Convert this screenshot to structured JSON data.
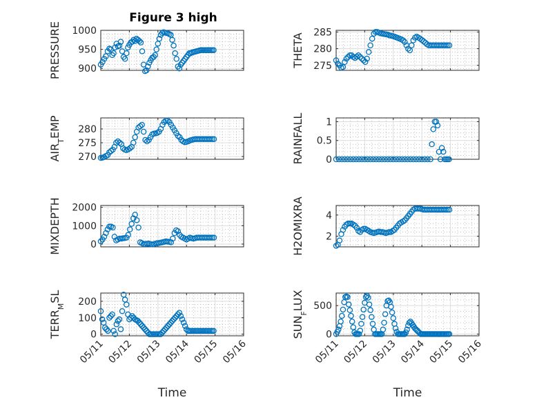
{
  "figure": {
    "title": "Figure 3 high",
    "marker_color": "#0072BD"
  },
  "chart_data": [
    {
      "type": "scatter",
      "ylabel": "PRESSURE",
      "xlabel": "",
      "ylim": [
        895,
        1000
      ],
      "yticks": [
        "900",
        "950",
        "1000"
      ],
      "ytick_values": [
        900,
        950,
        1000
      ],
      "xlim": [
        0,
        5
      ],
      "xtick_labels": [
        "05/11",
        "05/12",
        "05/13",
        "05/14",
        "05/15",
        "05/16"
      ],
      "show_xtick_labels": false,
      "grid": true,
      "x": [
        0,
        0.06,
        0.12,
        0.18,
        0.24,
        0.3,
        0.35,
        0.4,
        0.45,
        0.5,
        0.55,
        0.6,
        0.65,
        0.7,
        0.75,
        0.8,
        0.85,
        0.9,
        0.95,
        1.0,
        1.05,
        1.1,
        1.15,
        1.2,
        1.25,
        1.3,
        1.35,
        1.4,
        1.45,
        1.5,
        1.55,
        1.6,
        1.65,
        1.7,
        1.75,
        1.8,
        1.85,
        1.9,
        1.95,
        2.0,
        2.05,
        2.1,
        2.15,
        2.2,
        2.25,
        2.3,
        2.35,
        2.4,
        2.45,
        2.5,
        2.55,
        2.6,
        2.65,
        2.7,
        2.75,
        2.8,
        2.85,
        2.9,
        2.95,
        3.0,
        3.05,
        3.1,
        3.15,
        3.2,
        3.25,
        3.3,
        3.35,
        3.4,
        3.45,
        3.5,
        3.55,
        3.6,
        3.65,
        3.7,
        3.75,
        3.8,
        3.85,
        3.9,
        3.95
      ],
      "y": [
        910,
        917,
        925,
        932,
        945,
        952,
        950,
        935,
        940,
        955,
        965,
        958,
        960,
        970,
        945,
        930,
        925,
        940,
        955,
        962,
        968,
        970,
        975,
        972,
        978,
        975,
        972,
        968,
        945,
        910,
        893,
        895,
        905,
        915,
        922,
        928,
        930,
        935,
        950,
        965,
        978,
        988,
        993,
        995,
        994,
        993,
        992,
        990,
        988,
        975,
        960,
        940,
        925,
        905,
        900,
        910,
        915,
        920,
        925,
        930,
        935,
        940,
        940,
        942,
        943,
        944,
        945,
        946,
        947,
        948,
        948,
        948,
        948,
        948,
        948,
        948,
        948,
        948,
        948
      ]
    },
    {
      "type": "scatter",
      "ylabel": "THETA",
      "xlabel": "",
      "ylim": [
        273.5,
        285.5
      ],
      "yticks": [
        "275",
        "280",
        "285"
      ],
      "ytick_values": [
        275,
        280,
        285
      ],
      "xlim": [
        0,
        5
      ],
      "xtick_labels": [
        "05/11",
        "05/12",
        "05/13",
        "05/14",
        "05/15",
        "05/16"
      ],
      "show_xtick_labels": false,
      "grid": true,
      "x": [
        0,
        0.06,
        0.12,
        0.18,
        0.24,
        0.3,
        0.36,
        0.42,
        0.48,
        0.54,
        0.6,
        0.66,
        0.72,
        0.78,
        0.84,
        0.9,
        0.96,
        1.02,
        1.08,
        1.14,
        1.2,
        1.26,
        1.32,
        1.38,
        1.44,
        1.5,
        1.56,
        1.62,
        1.68,
        1.74,
        1.8,
        1.86,
        1.92,
        1.98,
        2.04,
        2.1,
        2.16,
        2.22,
        2.28,
        2.34,
        2.4,
        2.46,
        2.52,
        2.58,
        2.64,
        2.7,
        2.76,
        2.82,
        2.88,
        2.94,
        3.0,
        3.06,
        3.12,
        3.18,
        3.24,
        3.3,
        3.36,
        3.42,
        3.48,
        3.54,
        3.6,
        3.66,
        3.72,
        3.78,
        3.84,
        3.9,
        3.96
      ],
      "y": [
        276.5,
        275.5,
        275,
        274.3,
        274.5,
        276,
        277,
        277.5,
        278,
        278,
        277.5,
        277.2,
        277.6,
        278,
        277.5,
        277,
        276.5,
        276,
        277,
        279,
        281,
        283,
        284.5,
        285,
        285,
        284.8,
        284.6,
        284.5,
        284.4,
        284.3,
        284.2,
        284,
        283.9,
        283.8,
        283.6,
        283.4,
        283.2,
        283,
        282.8,
        282.5,
        282,
        281,
        280,
        279.5,
        281,
        282.5,
        283.3,
        283.6,
        283.3,
        283,
        282.6,
        282.2,
        281.8,
        281.3,
        281,
        281,
        281,
        281,
        281,
        281,
        281,
        281,
        281,
        281,
        281,
        281,
        281
      ]
    },
    {
      "type": "scatter",
      "ylabel": "AIR_TEMP",
      "xlabel": "",
      "ylim": [
        269,
        284
      ],
      "yticks": [
        "270",
        "275",
        "280"
      ],
      "ytick_values": [
        270,
        275,
        280
      ],
      "xlim": [
        0,
        5
      ],
      "xtick_labels": [
        "05/11",
        "05/12",
        "05/13",
        "05/14",
        "05/15",
        "05/16"
      ],
      "show_xtick_labels": false,
      "grid": true,
      "x": [
        0,
        0.06,
        0.12,
        0.18,
        0.24,
        0.3,
        0.36,
        0.42,
        0.48,
        0.54,
        0.6,
        0.66,
        0.72,
        0.78,
        0.84,
        0.9,
        0.96,
        1.02,
        1.08,
        1.14,
        1.2,
        1.26,
        1.32,
        1.38,
        1.44,
        1.5,
        1.56,
        1.62,
        1.68,
        1.74,
        1.8,
        1.86,
        1.92,
        1.98,
        2.04,
        2.1,
        2.16,
        2.22,
        2.28,
        2.34,
        2.4,
        2.46,
        2.52,
        2.58,
        2.64,
        2.7,
        2.76,
        2.82,
        2.88,
        2.94,
        3.0,
        3.06,
        3.12,
        3.18,
        3.24,
        3.3,
        3.36,
        3.42,
        3.48,
        3.54,
        3.6,
        3.66,
        3.72,
        3.78,
        3.84,
        3.9,
        3.96
      ],
      "y": [
        269.5,
        269.6,
        269.8,
        270.2,
        270.5,
        271.5,
        272,
        272.5,
        273.5,
        275,
        275.5,
        275,
        274.5,
        273,
        272.5,
        272.3,
        272.6,
        273,
        273.5,
        275,
        277,
        279,
        280.5,
        281,
        281.5,
        279,
        276,
        275.5,
        276,
        277,
        278,
        278.3,
        278.4,
        278.6,
        279,
        280,
        281.5,
        282.5,
        283,
        283,
        282.5,
        281.5,
        280.5,
        279.5,
        278.5,
        277.5,
        277,
        276,
        275.5,
        275.2,
        275.3,
        275.5,
        275.8,
        276,
        276.2,
        276.3,
        276.3,
        276.3,
        276.3,
        276.3,
        276.3,
        276.3,
        276.3,
        276.3,
        276.3,
        276.3,
        276.3
      ]
    },
    {
      "type": "scatter",
      "ylabel": "RAINFALL",
      "xlabel": "",
      "ylim": [
        0,
        1.1
      ],
      "yticks": [
        "0",
        "0.5",
        "1"
      ],
      "ytick_values": [
        0,
        0.5,
        1
      ],
      "xlim": [
        0,
        5
      ],
      "xtick_labels": [
        "05/11",
        "05/12",
        "05/13",
        "05/14",
        "05/15",
        "05/16"
      ],
      "show_xtick_labels": false,
      "grid": true,
      "x": [
        0,
        0.1,
        0.2,
        0.3,
        0.4,
        0.5,
        0.6,
        0.7,
        0.8,
        0.9,
        1.0,
        1.1,
        1.2,
        1.3,
        1.4,
        1.5,
        1.6,
        1.7,
        1.8,
        1.9,
        2.0,
        2.1,
        2.2,
        2.3,
        2.4,
        2.5,
        2.6,
        2.7,
        2.8,
        2.9,
        3.0,
        3.1,
        3.2,
        3.3,
        3.35,
        3.4,
        3.45,
        3.5,
        3.55,
        3.6,
        3.65,
        3.7,
        3.75,
        3.8,
        3.85,
        3.9,
        3.95
      ],
      "y": [
        0,
        0,
        0,
        0,
        0,
        0,
        0,
        0,
        0,
        0,
        0,
        0,
        0,
        0,
        0,
        0,
        0,
        0,
        0,
        0,
        0,
        0,
        0,
        0,
        0,
        0,
        0,
        0,
        0,
        0,
        0,
        0,
        0,
        0,
        0.4,
        0.8,
        1.0,
        1.0,
        0.9,
        0.2,
        0,
        0.3,
        0.2,
        0,
        0,
        0,
        0
      ]
    },
    {
      "type": "scatter",
      "ylabel": "MIXDEPTH",
      "xlabel": "",
      "ylim": [
        -150,
        2100
      ],
      "yticks": [
        "0",
        "1000",
        "2000"
      ],
      "ytick_values": [
        0,
        1000,
        2000
      ],
      "xlim": [
        0,
        5
      ],
      "xtick_labels": [
        "05/11",
        "05/12",
        "05/13",
        "05/14",
        "05/15",
        "05/16"
      ],
      "show_xtick_labels": false,
      "grid": true,
      "x": [
        0,
        0.06,
        0.12,
        0.18,
        0.24,
        0.3,
        0.36,
        0.42,
        0.48,
        0.54,
        0.6,
        0.66,
        0.72,
        0.78,
        0.84,
        0.9,
        0.96,
        1.02,
        1.08,
        1.14,
        1.2,
        1.26,
        1.32,
        1.38,
        1.44,
        1.5,
        1.56,
        1.62,
        1.68,
        1.74,
        1.8,
        1.86,
        1.92,
        1.98,
        2.04,
        2.1,
        2.16,
        2.22,
        2.28,
        2.34,
        2.4,
        2.46,
        2.52,
        2.58,
        2.64,
        2.7,
        2.76,
        2.82,
        2.88,
        2.94,
        3.0,
        3.06,
        3.12,
        3.18,
        3.24,
        3.3,
        3.36,
        3.42,
        3.48,
        3.54,
        3.6,
        3.66,
        3.72,
        3.78,
        3.84,
        3.9,
        3.96
      ],
      "y": [
        150,
        250,
        400,
        600,
        800,
        950,
        950,
        900,
        400,
        200,
        250,
        300,
        300,
        320,
        330,
        350,
        500,
        800,
        1100,
        1400,
        1600,
        1300,
        900,
        100,
        50,
        0,
        10,
        20,
        30,
        0,
        -20,
        0,
        30,
        50,
        60,
        80,
        100,
        120,
        150,
        130,
        120,
        100,
        300,
        600,
        750,
        700,
        500,
        400,
        350,
        300,
        250,
        300,
        350,
        320,
        300,
        320,
        350,
        350,
        350,
        350,
        350,
        350,
        350,
        350,
        350,
        350,
        350
      ]
    },
    {
      "type": "scatter",
      "ylabel": "H2OMIXRA",
      "xlabel": "",
      "ylim": [
        1,
        4.9
      ],
      "yticks": [
        "2",
        "4"
      ],
      "ytick_values": [
        2,
        4
      ],
      "xlim": [
        0,
        5
      ],
      "xtick_labels": [
        "05/11",
        "05/12",
        "05/13",
        "05/14",
        "05/15",
        "05/16"
      ],
      "show_xtick_labels": false,
      "grid": true,
      "x": [
        0,
        0.06,
        0.12,
        0.18,
        0.24,
        0.3,
        0.36,
        0.42,
        0.48,
        0.54,
        0.6,
        0.66,
        0.72,
        0.78,
        0.84,
        0.9,
        0.96,
        1.02,
        1.08,
        1.14,
        1.2,
        1.26,
        1.32,
        1.38,
        1.44,
        1.5,
        1.56,
        1.62,
        1.68,
        1.74,
        1.8,
        1.86,
        1.92,
        1.98,
        2.04,
        2.1,
        2.16,
        2.22,
        2.28,
        2.34,
        2.4,
        2.46,
        2.52,
        2.58,
        2.64,
        2.7,
        2.76,
        2.82,
        2.88,
        2.94,
        3.0,
        3.06,
        3.12,
        3.18,
        3.24,
        3.3,
        3.36,
        3.42,
        3.48,
        3.54,
        3.6,
        3.66,
        3.72,
        3.78,
        3.84,
        3.9,
        3.96
      ],
      "y": [
        1.1,
        1.2,
        1.6,
        2.2,
        2.6,
        2.9,
        3.1,
        3.2,
        3.2,
        3.2,
        3.1,
        3.0,
        2.8,
        2.5,
        2.4,
        2.6,
        2.7,
        2.7,
        2.6,
        2.5,
        2.4,
        2.35,
        2.3,
        2.35,
        2.4,
        2.45,
        2.4,
        2.4,
        2.35,
        2.3,
        2.35,
        2.4,
        2.4,
        2.5,
        2.6,
        2.8,
        3.0,
        3.2,
        3.3,
        3.4,
        3.5,
        3.7,
        3.9,
        4.1,
        4.3,
        4.5,
        4.6,
        4.6,
        4.6,
        4.6,
        4.55,
        4.5,
        4.5,
        4.5,
        4.5,
        4.5,
        4.5,
        4.5,
        4.5,
        4.5,
        4.5,
        4.5,
        4.5,
        4.5,
        4.5,
        4.5,
        4.5
      ]
    },
    {
      "type": "scatter",
      "ylabel": "TERR_MSL",
      "xlabel": "Time",
      "ylim": [
        -10,
        250
      ],
      "yticks": [
        "0",
        "100",
        "200"
      ],
      "ytick_values": [
        0,
        100,
        200
      ],
      "xlim": [
        0,
        5
      ],
      "xtick_labels": [
        "05/11",
        "05/12",
        "05/13",
        "05/14",
        "05/15",
        "05/16"
      ],
      "show_xtick_labels": true,
      "grid": true,
      "x": [
        0,
        0.05,
        0.1,
        0.15,
        0.2,
        0.25,
        0.3,
        0.35,
        0.4,
        0.45,
        0.5,
        0.55,
        0.6,
        0.65,
        0.7,
        0.75,
        0.8,
        0.85,
        0.9,
        0.95,
        1.0,
        1.05,
        1.1,
        1.15,
        1.2,
        1.25,
        1.3,
        1.35,
        1.4,
        1.45,
        1.5,
        1.55,
        1.6,
        1.65,
        1.7,
        1.75,
        1.8,
        1.85,
        1.9,
        1.95,
        2.0,
        2.05,
        2.1,
        2.15,
        2.2,
        2.25,
        2.3,
        2.35,
        2.4,
        2.45,
        2.5,
        2.55,
        2.6,
        2.65,
        2.7,
        2.75,
        2.8,
        2.85,
        2.9,
        2.95,
        3.0,
        3.05,
        3.1,
        3.15,
        3.2,
        3.25,
        3.3,
        3.35,
        3.4,
        3.45,
        3.5,
        3.55,
        3.6,
        3.65,
        3.7,
        3.75,
        3.8,
        3.85,
        3.9,
        3.95
      ],
      "y": [
        140,
        90,
        70,
        40,
        30,
        20,
        100,
        110,
        120,
        20,
        0,
        60,
        80,
        90,
        30,
        140,
        240,
        210,
        180,
        120,
        90,
        100,
        110,
        100,
        90,
        85,
        80,
        70,
        60,
        50,
        40,
        30,
        20,
        10,
        0,
        0,
        0,
        0,
        0,
        0,
        0,
        0,
        0,
        10,
        20,
        30,
        40,
        50,
        60,
        70,
        80,
        90,
        100,
        110,
        120,
        130,
        110,
        90,
        70,
        50,
        30,
        20,
        20,
        20,
        20,
        20,
        20,
        20,
        20,
        20,
        20,
        20,
        20,
        20,
        20,
        20,
        20,
        20,
        20,
        20
      ]
    },
    {
      "type": "scatter",
      "ylabel": "SUN_FLUX",
      "xlabel": "Time",
      "ylim": [
        -30,
        720
      ],
      "yticks": [
        "0",
        "500"
      ],
      "ytick_values": [
        0,
        500
      ],
      "xlim": [
        0,
        5
      ],
      "xtick_labels": [
        "05/11",
        "05/12",
        "05/13",
        "05/14",
        "05/15",
        "05/16"
      ],
      "show_xtick_labels": true,
      "grid": true,
      "x": [
        0,
        0.04,
        0.08,
        0.12,
        0.16,
        0.2,
        0.24,
        0.28,
        0.32,
        0.36,
        0.4,
        0.44,
        0.48,
        0.52,
        0.56,
        0.6,
        0.64,
        0.68,
        0.72,
        0.76,
        0.8,
        0.84,
        0.88,
        0.92,
        0.96,
        1.0,
        1.04,
        1.08,
        1.12,
        1.16,
        1.2,
        1.24,
        1.28,
        1.32,
        1.36,
        1.4,
        1.44,
        1.48,
        1.52,
        1.56,
        1.6,
        1.64,
        1.68,
        1.72,
        1.76,
        1.8,
        1.84,
        1.88,
        1.92,
        1.96,
        2.0,
        2.04,
        2.08,
        2.12,
        2.16,
        2.2,
        2.24,
        2.28,
        2.32,
        2.36,
        2.4,
        2.44,
        2.48,
        2.52,
        2.56,
        2.6,
        2.64,
        2.68,
        2.72,
        2.76,
        2.8,
        2.84,
        2.88,
        2.92,
        2.96,
        3.0,
        3.04,
        3.08,
        3.12,
        3.16,
        3.2,
        3.24,
        3.28,
        3.32,
        3.36,
        3.4,
        3.44,
        3.48,
        3.52,
        3.56,
        3.6,
        3.64,
        3.68,
        3.72,
        3.76,
        3.8,
        3.84,
        3.88,
        3.92,
        3.96
      ],
      "y": [
        0,
        40,
        80,
        140,
        220,
        320,
        430,
        560,
        650,
        660,
        650,
        520,
        420,
        320,
        220,
        120,
        30,
        0,
        0,
        0,
        0,
        60,
        180,
        300,
        430,
        550,
        650,
        670,
        640,
        520,
        420,
        300,
        180,
        80,
        0,
        0,
        0,
        0,
        0,
        0,
        0,
        80,
        200,
        350,
        500,
        580,
        590,
        560,
        480,
        380,
        280,
        180,
        100,
        40,
        0,
        0,
        0,
        0,
        0,
        0,
        0,
        30,
        80,
        150,
        200,
        220,
        190,
        160,
        130,
        100,
        80,
        60,
        40,
        20,
        0,
        0,
        0,
        0,
        0,
        0,
        0,
        0,
        0,
        0,
        0,
        0,
        0,
        0,
        0,
        0,
        0,
        0,
        0,
        0,
        0,
        0,
        0,
        0,
        0,
        0
      ]
    }
  ]
}
